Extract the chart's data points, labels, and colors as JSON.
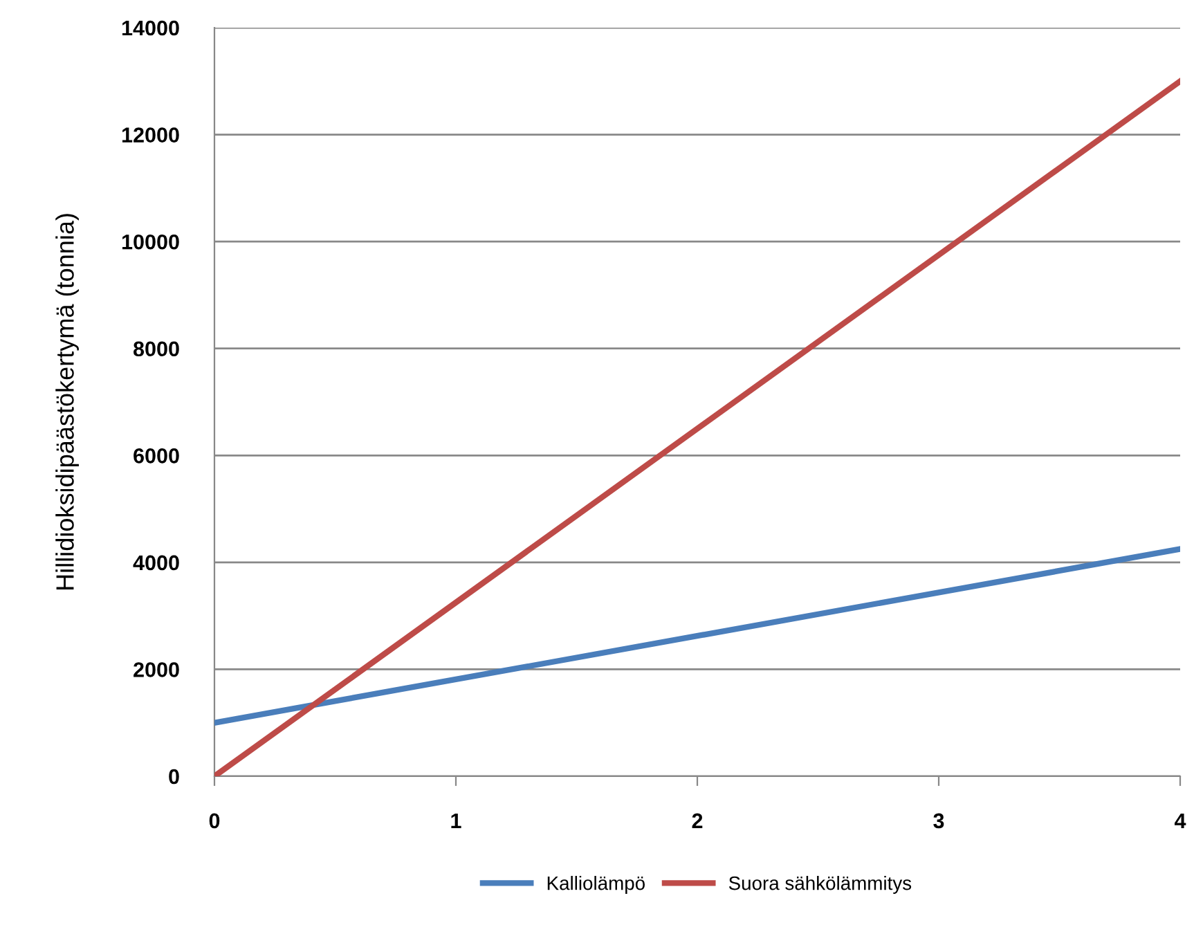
{
  "chart_data": {
    "type": "line",
    "ylabel": "Hillidioksidipäästökertymä (tonnia)",
    "x": [
      0,
      4
    ],
    "series": [
      {
        "name": "Kalliolämpö",
        "color": "#4a7ebb",
        "values": [
          1000,
          4250
        ]
      },
      {
        "name": "Suora sähkölämmitys",
        "color": "#be4b48",
        "values": [
          0,
          13000
        ]
      }
    ],
    "xlim": [
      0,
      4
    ],
    "xticks": [
      0,
      1,
      2,
      3,
      4
    ],
    "ylim": [
      0,
      14000
    ],
    "yticks": [
      0,
      2000,
      4000,
      6000,
      8000,
      10000,
      12000,
      14000
    ],
    "grid": "y",
    "legend": "bottom",
    "marker": "none",
    "line_style": "solid"
  }
}
